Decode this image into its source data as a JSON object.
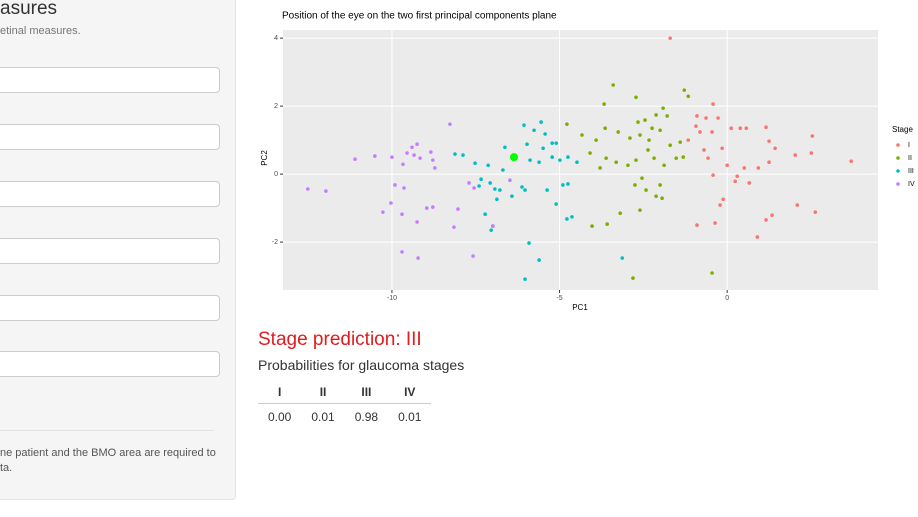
{
  "sidebar": {
    "title": "asures",
    "subtitle": "etinal measures.",
    "note_lines": [
      "ne patient and the BMO area are required to",
      "ta."
    ]
  },
  "chart_data": {
    "type": "scatter",
    "title": "Position of the eye on the two first principal components plane",
    "x_label": "PC1",
    "y_label": "PC2",
    "legend_title": "Stage",
    "legend": "right",
    "grid": true,
    "xlim": [
      -13.25,
      4.5
    ],
    "ylim": [
      -3.41,
      4.24
    ],
    "xticks": [
      -10,
      -5,
      0
    ],
    "yticks": [
      -2,
      0,
      2,
      4
    ],
    "series": [
      {
        "name": "I",
        "color": "#f8766d",
        "x": [
          -1.7,
          -0.9,
          -0.42,
          -0.27,
          0.12,
          0.39,
          0.57,
          1.16,
          2.54,
          3.7,
          2.03,
          1.43,
          1.25,
          0.93,
          0.3,
          0.51,
          0,
          -0.42,
          -0.69,
          -0.57,
          -0.15,
          -0.45,
          -0.81,
          -1.16,
          -0.93,
          2.51,
          2.09,
          2.63,
          1.16,
          1.34,
          0.9,
          0.66,
          0.24,
          -0.36,
          -0.9,
          -0.12,
          -0.21,
          1.25,
          -0.63
        ],
        "values": [
          4.0,
          1.71,
          2.06,
          1.65,
          1.35,
          1.35,
          1.35,
          1.38,
          1.12,
          0.38,
          0.56,
          0.76,
          0.35,
          0.18,
          -0.06,
          0.18,
          0.26,
          -0.03,
          0.71,
          0.47,
          0.76,
          1.24,
          1.24,
          1.0,
          1.41,
          0.62,
          -0.91,
          -1.12,
          -1.35,
          -1.21,
          -1.85,
          -0.26,
          -0.21,
          -1.44,
          -1.5,
          -0.74,
          -0.91,
          0.97,
          1.65
        ]
      },
      {
        "name": "II",
        "color": "#7cae00",
        "x": [
          -3.4,
          -3.67,
          -2.72,
          -1.28,
          -1.16,
          -1.91,
          -2.12,
          -1.79,
          -2.45,
          -2.66,
          -2.24,
          -2.0,
          -2.6,
          -2.9,
          -3.25,
          -3.64,
          -4.33,
          -4.78,
          -3.91,
          -3.61,
          -3.31,
          -2.96,
          -2.72,
          -2.36,
          -2.18,
          -1.88,
          -1.52,
          -1.31,
          -1.7,
          -2.54,
          -2.75,
          -2.42,
          -2.0,
          -2.12,
          -2.6,
          -3.19,
          -4.03,
          -3.58,
          -0.45,
          -2.81,
          -3.79,
          -4.09,
          -1.94,
          -1.4,
          -2.33
        ],
        "values": [
          2.62,
          2.06,
          2.26,
          2.47,
          2.29,
          1.94,
          1.74,
          1.71,
          1.59,
          1.53,
          1.35,
          1.29,
          1.15,
          1.06,
          1.24,
          1.35,
          1.15,
          1.47,
          1.0,
          0.47,
          0.35,
          0.26,
          0.41,
          0.71,
          0.47,
          0.26,
          0.47,
          0.5,
          0.85,
          -0.12,
          -0.32,
          -0.47,
          -0.32,
          -0.65,
          -1.06,
          -1.15,
          -1.53,
          -1.47,
          -2.91,
          -3.06,
          0.18,
          0.62,
          -0.71,
          0.94,
          1.0
        ]
      },
      {
        "name": "III",
        "color": "#00bfc4",
        "x": [
          -6.06,
          -5.76,
          -5.55,
          -5.43,
          -5.22,
          -5.1,
          -5.49,
          -5.97,
          -6.63,
          -5.88,
          -5.61,
          -5.22,
          -4.99,
          -4.75,
          -4.48,
          -6.69,
          -7.13,
          -7.52,
          -7.34,
          -7.07,
          -6.93,
          -7.4,
          -6.87,
          -7.22,
          -6.99,
          -7.04,
          -6.03,
          -6.12,
          -5.37,
          -4.9,
          -4.75,
          -5.1,
          -4.63,
          -4.78,
          -5.91,
          -5.61,
          -6.03,
          -3.13,
          -7.88,
          -8.12,
          -6.78,
          -6.42
        ],
        "values": [
          1.44,
          1.29,
          1.53,
          1.18,
          0.91,
          0.91,
          0.76,
          0.88,
          0.79,
          0.41,
          0.35,
          0.5,
          0.41,
          0.5,
          0.35,
          0.12,
          0.26,
          0.32,
          -0.15,
          -0.26,
          -0.44,
          -0.35,
          -0.74,
          -1.18,
          -1.53,
          -1.65,
          -0.47,
          -0.38,
          -0.47,
          -0.32,
          -0.29,
          -0.88,
          -1.26,
          -1.32,
          -2.03,
          -2.53,
          -3.09,
          -2.47,
          0.56,
          0.59,
          -0.47,
          -0.65
        ]
      },
      {
        "name": "IV",
        "color": "#c77cff",
        "x": [
          -12.51,
          -11.97,
          -11.1,
          -10.51,
          -10.0,
          -9.55,
          -9.4,
          -9.25,
          -9.34,
          -9.67,
          -9.16,
          -8.84,
          -8.78,
          -8.27,
          -8.72,
          -9.64,
          -9.91,
          -10.27,
          -10.03,
          -9.7,
          -9.25,
          -8.96,
          -8.78,
          -8.03,
          -8.15,
          -7.55,
          -7.7,
          -9.7,
          -9.22,
          -7.58,
          -6.99,
          -6.48
        ],
        "values": [
          -0.44,
          -0.5,
          0.44,
          0.53,
          0.5,
          0.62,
          0.79,
          0.88,
          0.56,
          0.29,
          0.47,
          0.65,
          0.41,
          1.47,
          0.18,
          -0.41,
          -0.32,
          -1.12,
          -0.85,
          -1.18,
          -1.41,
          -1.0,
          -0.97,
          -1.03,
          -1.56,
          -0.41,
          -0.26,
          -2.29,
          -2.47,
          -2.41,
          -1.53,
          -0.18
        ]
      }
    ],
    "highlight": {
      "x": -6.36,
      "y": 0.5,
      "color": "#00ff00"
    }
  },
  "prediction": "Stage prediction: III",
  "probabilities": {
    "title": "Probabilities for glaucoma stages",
    "header": [
      "I",
      "II",
      "III",
      "IV"
    ],
    "rows": [
      [
        "0.00",
        "0.01",
        "0.98",
        "0.01"
      ]
    ]
  }
}
